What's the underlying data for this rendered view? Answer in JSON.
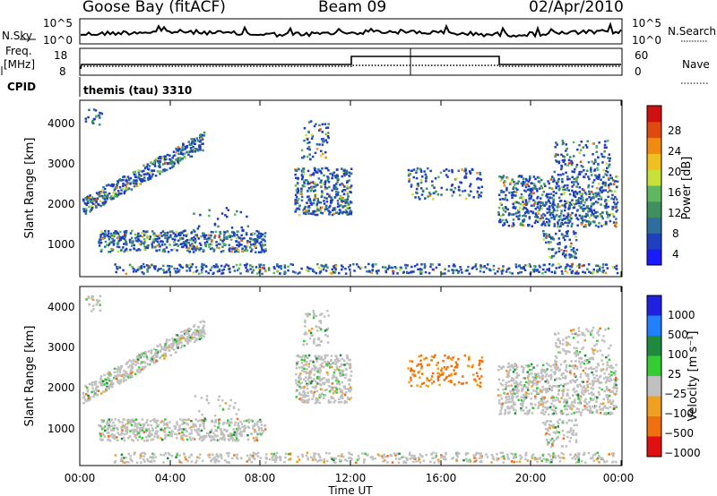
{
  "header": {
    "site": "Goose Bay (fitACF)",
    "beam": "Beam 09",
    "date": "02/Apr/2010"
  },
  "noise_panel": {
    "left_label": "N.Sky",
    "left_ticks": [
      "10^5",
      "10^0"
    ],
    "right_ticks": [
      "10^5",
      "10^0"
    ],
    "right_label": "N.Search"
  },
  "freq_panel": {
    "left_label_1": "Freq.",
    "left_label_2": "[MHz]",
    "left_ticks": [
      "18",
      "8"
    ],
    "right_ticks": [
      "60",
      "0"
    ],
    "right_label": "Nave"
  },
  "cpid_panel": {
    "label": "CPID",
    "program": "themis (tau) 3310"
  },
  "colors": {
    "power_scale": [
      "#1a1aff",
      "#1e3fbf",
      "#2e6e9e",
      "#3f8f5f",
      "#5fb85f",
      "#c8e03a",
      "#f0c020",
      "#f08a10",
      "#e04a10",
      "#d01010"
    ],
    "velocity_scale": [
      "#2020e0",
      "#2080ff",
      "#1e8a3e",
      "#33cc33",
      "#c0c0c0",
      "#f0a020",
      "#f07010",
      "#e01010"
    ]
  },
  "chart_data": [
    {
      "type": "heatmap",
      "title": "",
      "xlabel": "",
      "ylabel": "Slant Range [km]",
      "x_ticks": [
        "00:00",
        "04:00",
        "08:00",
        "12:00",
        "16:00",
        "20:00",
        "00:00"
      ],
      "y_ticks": [
        "1000",
        "2000",
        "3000",
        "4000"
      ],
      "ylim": [
        0,
        4500
      ],
      "colorbar_label": "Power [dB]",
      "colorbar_ticks": [
        "4",
        "8",
        "12",
        "16",
        "20",
        "24",
        "28"
      ],
      "clim": [
        0,
        30
      ]
    },
    {
      "type": "heatmap",
      "title": "",
      "xlabel": "Time UT",
      "ylabel": "Slant Range [km]",
      "x_ticks": [
        "00:00",
        "04:00",
        "08:00",
        "12:00",
        "16:00",
        "20:00",
        "00:00"
      ],
      "y_ticks": [
        "1000",
        "2000",
        "3000",
        "4000"
      ],
      "ylim": [
        0,
        4500
      ],
      "colorbar_label": "Velocity [m s⁻¹]",
      "colorbar_ticks": [
        "1000",
        "500",
        "100",
        "25",
        "−25",
        "−100",
        "−500",
        "−1000"
      ]
    }
  ]
}
